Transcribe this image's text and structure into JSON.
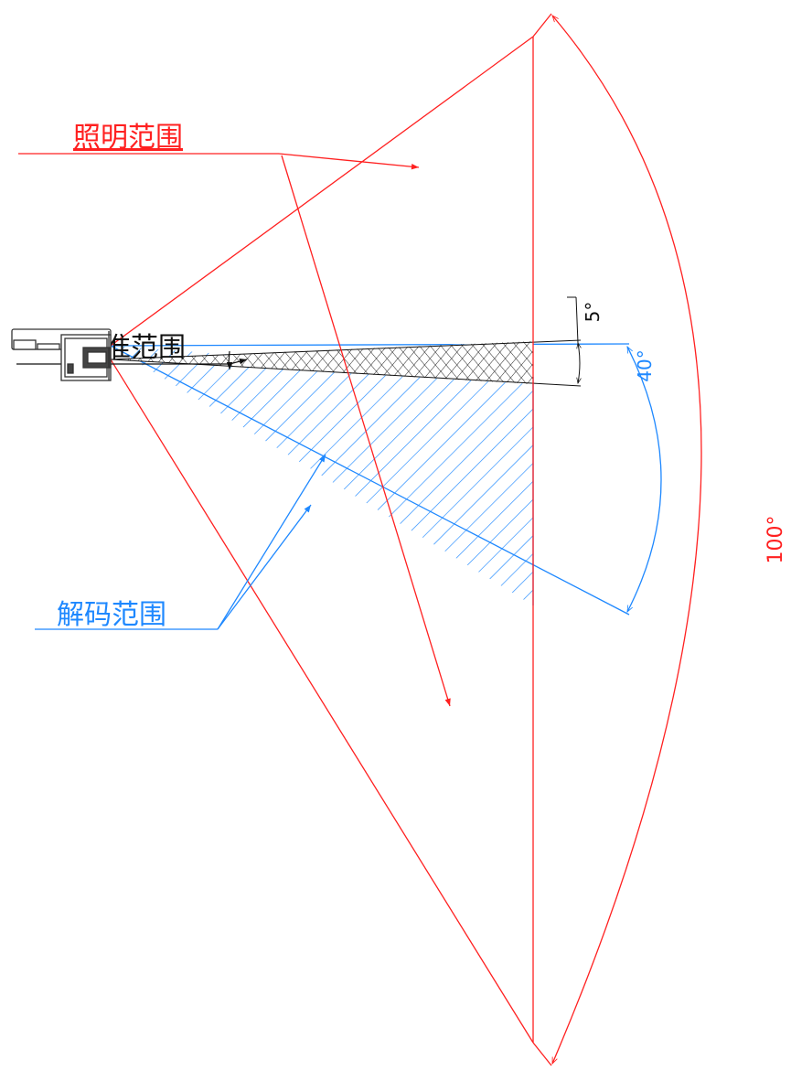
{
  "labels": {
    "illumination_range": "照明范围",
    "aiming_range": "瞄准范围",
    "decoding_range": "解码范围"
  },
  "angles": {
    "illumination": "100°",
    "decoding": "40°",
    "aiming": "5°"
  },
  "colors": {
    "illumination": "#ff2020",
    "decoding": "#1e88ff",
    "aiming": "#111111",
    "device": "#333333",
    "background": "#ffffff"
  }
}
